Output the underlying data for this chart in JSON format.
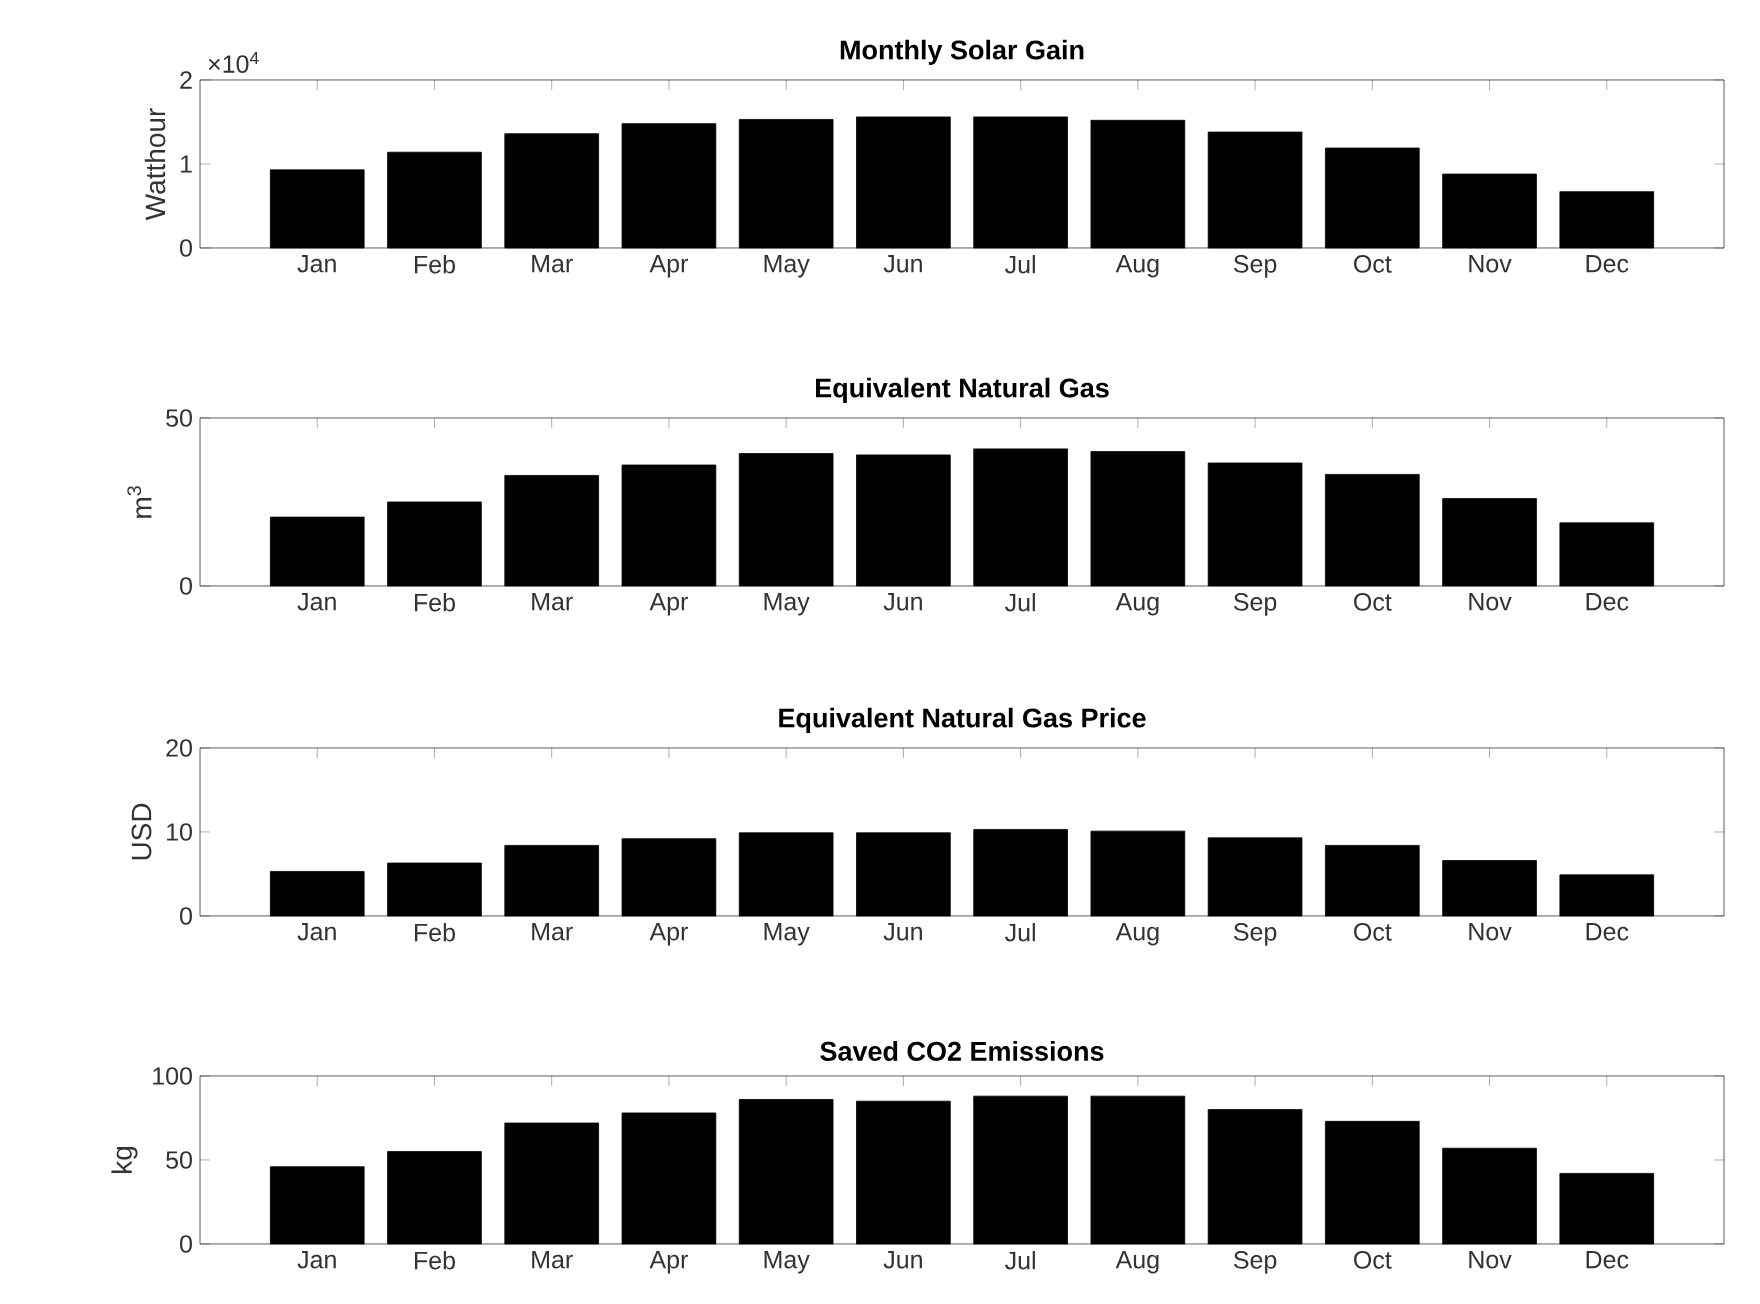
{
  "chart_data": [
    {
      "type": "bar",
      "title": "Monthly Solar Gain",
      "ylabel": "Watthour",
      "categories": [
        "Jan",
        "Feb",
        "Mar",
        "Apr",
        "May",
        "Jun",
        "Jul",
        "Aug",
        "Sep",
        "Oct",
        "Nov",
        "Dec"
      ],
      "values": [
        0.93,
        1.14,
        1.36,
        1.48,
        1.53,
        1.56,
        1.56,
        1.52,
        1.38,
        1.19,
        0.88,
        0.67
      ],
      "color": "#000000",
      "ylim": [
        0,
        2
      ],
      "yticks": [
        0,
        1,
        2
      ],
      "annotations": [
        "×10$^{4}$"
      ]
    },
    {
      "type": "bar",
      "title": "Equivalent Natural Gas",
      "ylabel": "m$^{3}$",
      "categories": [
        "Jan",
        "Feb",
        "Mar",
        "Apr",
        "May",
        "Jun",
        "Jul",
        "Aug",
        "Sep",
        "Oct",
        "Nov",
        "Dec"
      ],
      "values": [
        20.5,
        25,
        32.9,
        36,
        39.4,
        39,
        40.8,
        40,
        36.6,
        33.2,
        26,
        18.8
      ],
      "color": "#000000",
      "ylim": [
        0,
        50
      ],
      "yticks": [
        0,
        50
      ]
    },
    {
      "type": "bar",
      "title": "Equivalent Natural Gas Price",
      "ylabel": "USD",
      "categories": [
        "Jan",
        "Feb",
        "Mar",
        "Apr",
        "May",
        "Jun",
        "Jul",
        "Aug",
        "Sep",
        "Oct",
        "Nov",
        "Dec"
      ],
      "values": [
        5.3,
        6.3,
        8.4,
        9.2,
        9.9,
        9.9,
        10.3,
        10.1,
        9.3,
        8.4,
        6.6,
        4.9
      ],
      "color": "#000000",
      "ylim": [
        0,
        20
      ],
      "yticks": [
        0,
        10,
        20
      ]
    },
    {
      "type": "bar",
      "title": "Saved CO2 Emissions",
      "ylabel": "kg",
      "categories": [
        "Jan",
        "Feb",
        "Mar",
        "Apr",
        "May",
        "Jun",
        "Jul",
        "Aug",
        "Sep",
        "Oct",
        "Nov",
        "Dec"
      ],
      "values": [
        46,
        55,
        72,
        78,
        86,
        85,
        88,
        88,
        80,
        73,
        57,
        42
      ],
      "color": "#000000",
      "ylim": [
        0,
        100
      ],
      "yticks": [
        0,
        50,
        100
      ]
    }
  ]
}
